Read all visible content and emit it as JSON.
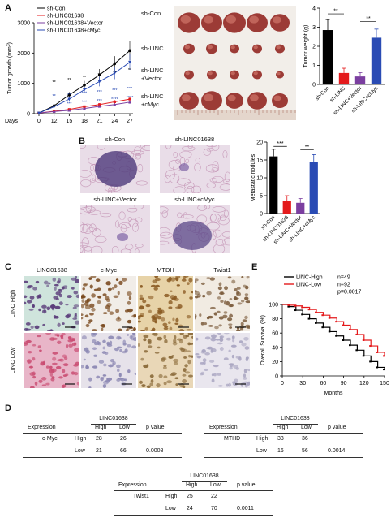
{
  "panels": {
    "a": "A",
    "b": "B",
    "c": "C",
    "d": "D",
    "e": "E"
  },
  "panelA": {
    "growth_chart": {
      "type": "line",
      "ylabel": "Tumor growth (mm",
      "ylabel_sup": "3",
      "ylabel_close": ")",
      "xlabel": "Days",
      "x": [
        0,
        12,
        15,
        18,
        21,
        24,
        27
      ],
      "ylim": [
        0,
        3000
      ],
      "yticks": [
        "0",
        "1000",
        "2000",
        "3000"
      ],
      "series": [
        {
          "name": "sh-Con",
          "color": "#000000",
          "values": [
            20,
            260,
            620,
            940,
            1280,
            1650,
            2080
          ]
        },
        {
          "name": "sh-LINC01638",
          "color": "#e41a1c",
          "values": [
            20,
            80,
            140,
            230,
            300,
            390,
            480
          ]
        },
        {
          "name": "sh-LINC01638+Vector",
          "color": "#7b3fa0",
          "values": [
            20,
            70,
            110,
            170,
            240,
            300,
            380
          ]
        },
        {
          "name": "sh-LINC01638+cMyc",
          "color": "#2a4bb4",
          "values": [
            20,
            230,
            480,
            790,
            1060,
            1340,
            1700
          ]
        }
      ],
      "sig_row1": [
        "**",
        "**",
        "**",
        "**",
        "**",
        "**"
      ],
      "sig_row2": [
        "**",
        "**",
        "***",
        "***",
        "***",
        "***"
      ],
      "sig_row3": [
        "***",
        "***",
        "***",
        "****",
        "****"
      ]
    },
    "photo_labels": [
      "sh-Con",
      "sh-LINC",
      "sh-LINC\n+Vector",
      "sh-LINC\n+cMyc"
    ],
    "photo_label_lines": [
      [
        "sh-Con"
      ],
      [
        "sh-LINC"
      ],
      [
        "sh-LINC",
        "+Vector"
      ],
      [
        "sh-LINC",
        "+cMyc"
      ]
    ],
    "weight_chart": {
      "type": "bar",
      "ylabel": "Tumor weight (g)",
      "categories": [
        "sh-Con",
        "sh-LINC",
        "sh-LINC+Vector",
        "sh-LINC+cMyc"
      ],
      "values": [
        2.85,
        0.6,
        0.42,
        2.45
      ],
      "errors": [
        0.55,
        0.25,
        0.2,
        0.45
      ],
      "colors": [
        "#000000",
        "#e41a1c",
        "#7b3fa0",
        "#2a4bb4"
      ],
      "ylim": [
        0,
        4
      ],
      "yticks": [
        "0",
        "1",
        "2",
        "3",
        "4"
      ],
      "sig": [
        "**",
        "**"
      ]
    }
  },
  "panelB": {
    "image_labels": [
      "sh-Con",
      "sh-LINC01638",
      "sh-LINC+Vector",
      "sh-LINC+cMyc"
    ],
    "nodules_chart": {
      "type": "bar",
      "ylabel": "Metastatic nodules",
      "categories": [
        "sh-Con",
        "sh-LINC01638",
        "sh-LINC+Vector",
        "sh-LINC+cMyc"
      ],
      "values": [
        16,
        3.5,
        3,
        14.5
      ],
      "errors": [
        2.0,
        1.5,
        1.2,
        2.0
      ],
      "colors": [
        "#000000",
        "#e41a1c",
        "#7b3fa0",
        "#2a4bb4"
      ],
      "ylim": [
        0,
        20
      ],
      "yticks": [
        "0",
        "5",
        "10",
        "15",
        "20"
      ],
      "sig": [
        "***",
        "**"
      ]
    }
  },
  "panelC": {
    "col_labels": [
      "LINC01638",
      "c-Myc",
      "MTDH",
      "Twist1"
    ],
    "row_labels": [
      "LINC High",
      "LINC Low"
    ]
  },
  "panelE": {
    "survival_chart": {
      "type": "line",
      "ylabel": "Overall Survival (%)",
      "xlabel": "Months",
      "xticks": [
        "0",
        "30",
        "60",
        "90",
        "120",
        "150"
      ],
      "yticks": [
        "0",
        "20",
        "40",
        "60",
        "80",
        "100"
      ],
      "xlim": [
        0,
        150
      ],
      "ylim": [
        0,
        100
      ],
      "legend": [
        {
          "name": "LINC-High",
          "n": "n=49",
          "color": "#000000"
        },
        {
          "name": "LINC-Low",
          "n": "n=92",
          "color": "#e41a1c"
        }
      ],
      "pvalue": "p=0.0017",
      "series": [
        {
          "name": "LINC-High",
          "x": [
            0,
            10,
            20,
            30,
            40,
            50,
            60,
            70,
            80,
            90,
            100,
            110,
            120,
            130,
            140,
            150
          ],
          "values": [
            100,
            97,
            92,
            86,
            80,
            74,
            68,
            62,
            56,
            50,
            43,
            36,
            28,
            20,
            12,
            9
          ]
        },
        {
          "name": "LINC-Low",
          "x": [
            0,
            10,
            20,
            30,
            40,
            50,
            60,
            70,
            80,
            90,
            100,
            110,
            120,
            130,
            140,
            150
          ],
          "values": [
            100,
            99,
            98,
            96,
            93,
            89,
            85,
            81,
            76,
            71,
            65,
            58,
            50,
            42,
            33,
            28
          ]
        }
      ]
    }
  },
  "panelD": {
    "tables": [
      {
        "group_header": "LINC01638",
        "col_headers": [
          "Expression",
          "High",
          "Low",
          "p value"
        ],
        "gene": "c-Myc",
        "rows": [
          {
            "level": "High",
            "high": "28",
            "low": "26",
            "p": ""
          },
          {
            "level": "Low",
            "high": "21",
            "low": "66",
            "p": "0.0008"
          }
        ]
      },
      {
        "group_header": "LINC01638",
        "col_headers": [
          "Expression",
          "High",
          "Low",
          "p value"
        ],
        "gene": "MTHD",
        "rows": [
          {
            "level": "High",
            "high": "33",
            "low": "36",
            "p": ""
          },
          {
            "level": "Low",
            "high": "16",
            "low": "56",
            "p": "0.0014"
          }
        ]
      },
      {
        "group_header": "LINC01638",
        "col_headers": [
          "Expression",
          "High",
          "Low",
          "p value"
        ],
        "gene": "Twist1",
        "rows": [
          {
            "level": "High",
            "high": "25",
            "low": "22",
            "p": ""
          },
          {
            "level": "Low",
            "high": "24",
            "low": "70",
            "p": "0.0011"
          }
        ]
      }
    ]
  }
}
